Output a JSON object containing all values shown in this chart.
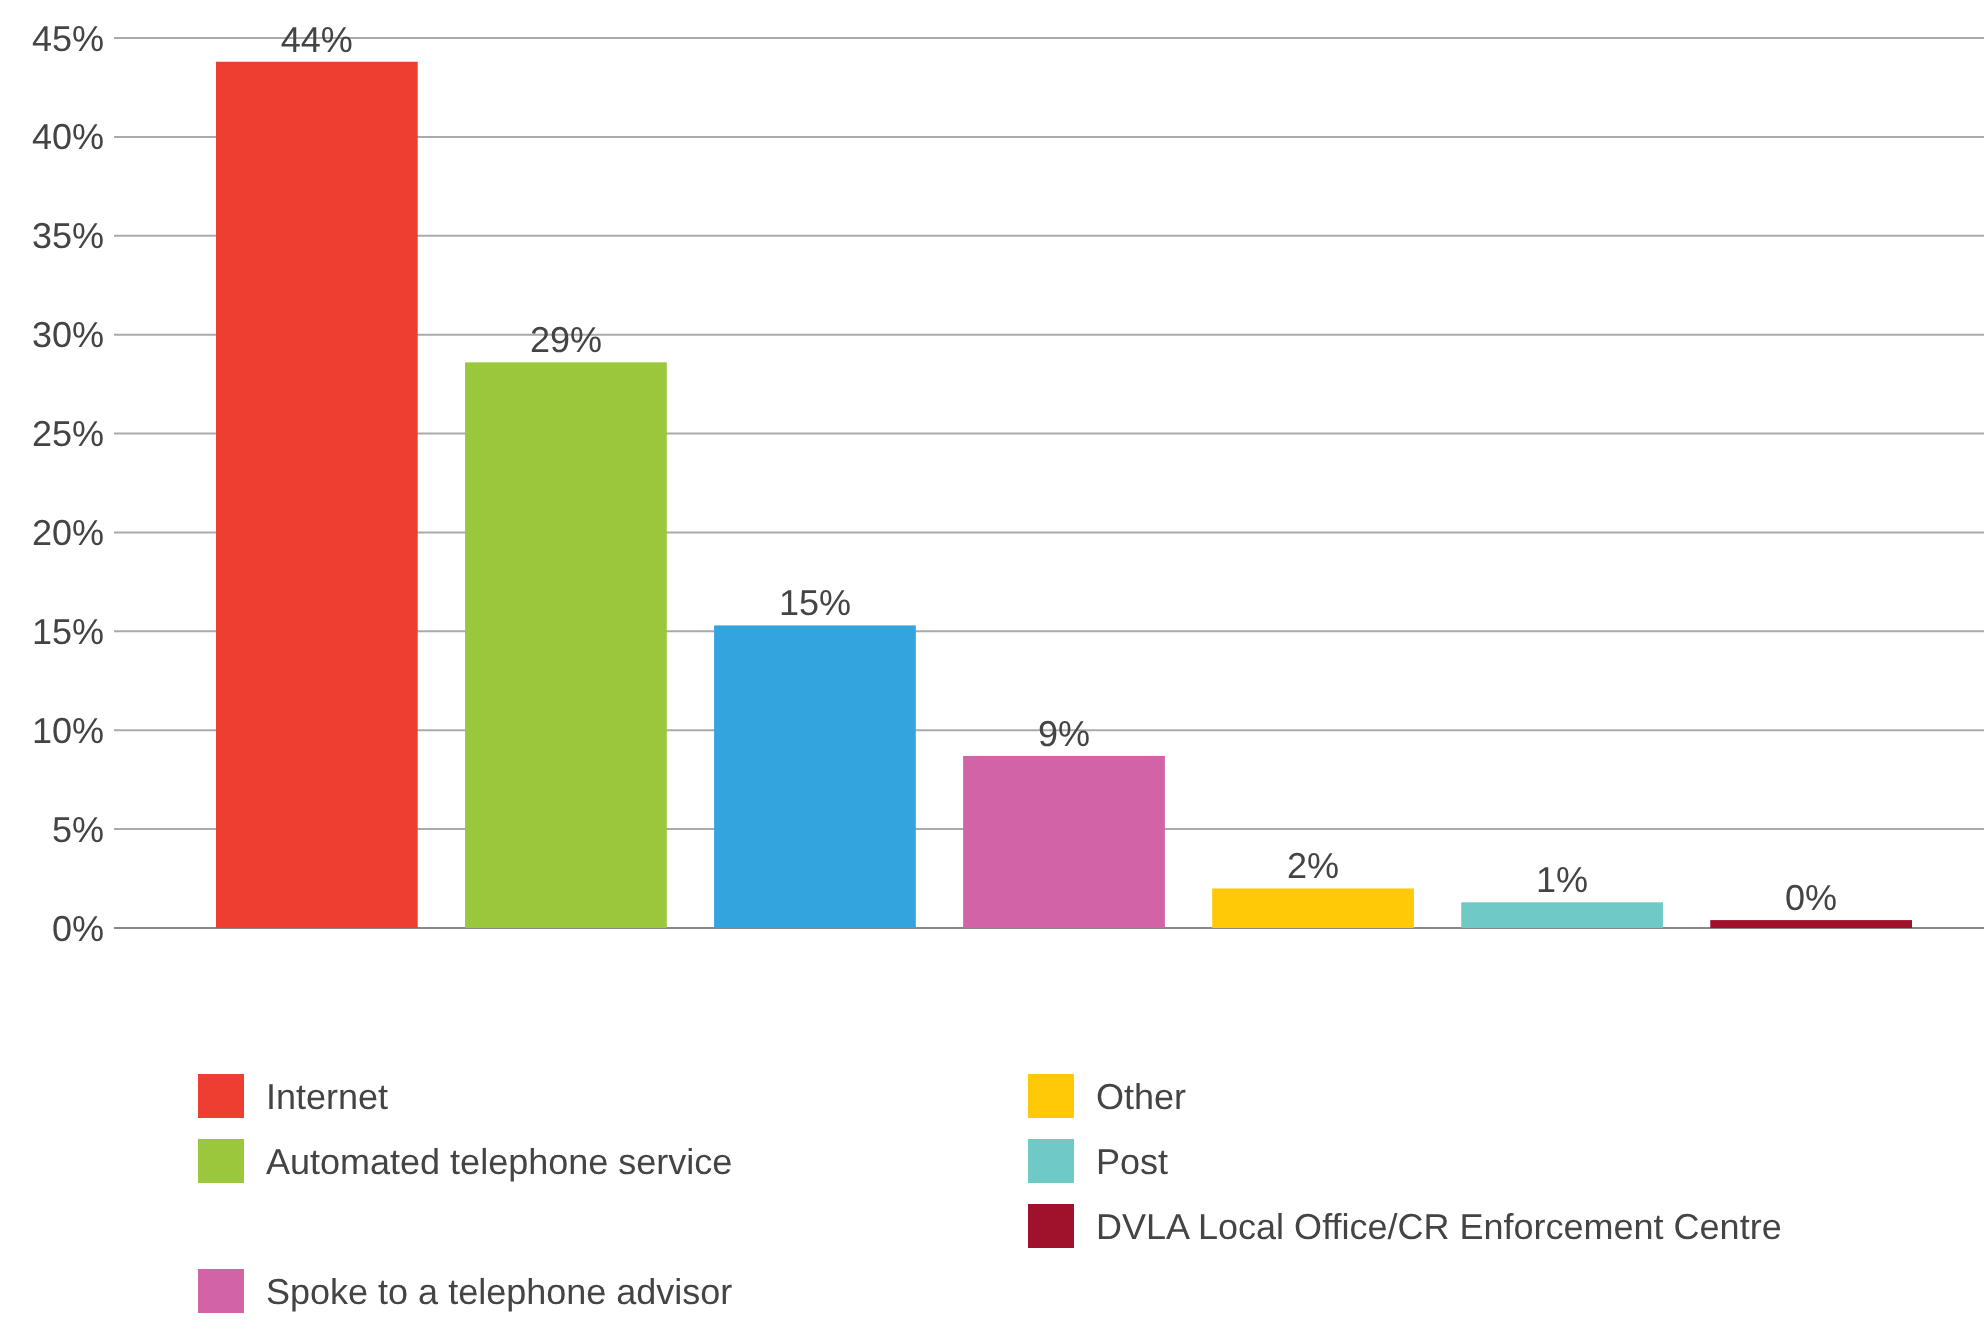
{
  "chart_data": {
    "type": "bar",
    "categories": [
      null
    ],
    "series": [
      {
        "name": "Internet",
        "color": "#ee3e32",
        "values": [
          43.8
        ],
        "value_labels": [
          "44%"
        ]
      },
      {
        "name": "Automated telephone service",
        "color": "#9bc73c",
        "values": [
          28.6
        ],
        "value_labels": [
          "29%"
        ]
      },
      {
        "color": "#34a4de",
        "values": [
          15.3
        ],
        "value_labels": [
          "15%"
        ]
      },
      {
        "name": "Spoke to a telephone advisor",
        "color": "#d163a6",
        "values": [
          8.7
        ],
        "value_labels": [
          "9%"
        ]
      },
      {
        "name": "Other",
        "color": "#ffc907",
        "values": [
          2.0
        ],
        "value_labels": [
          "2%"
        ]
      },
      {
        "name": "Post",
        "color": "#6fcac6",
        "values": [
          1.3
        ],
        "value_labels": [
          "1%"
        ]
      },
      {
        "name": "DVLA Local Office/CR Enforcement Centre",
        "color": "#a0112b",
        "values": [
          0.4
        ],
        "value_labels": [
          "0%"
        ]
      }
    ],
    "ylim": [
      0,
      45
    ],
    "yticks": [
      {
        "value": 0,
        "label": "0%"
      },
      {
        "value": 5,
        "label": "5%"
      },
      {
        "value": 10,
        "label": "10%"
      },
      {
        "value": 15,
        "label": "15%"
      },
      {
        "value": 20,
        "label": "20%"
      },
      {
        "value": 25,
        "label": "25%"
      },
      {
        "value": 30,
        "label": "30%"
      },
      {
        "value": 35,
        "label": "35%"
      },
      {
        "value": 40,
        "label": "40%"
      },
      {
        "value": 45,
        "label": "45%"
      }
    ],
    "grid": "y",
    "legend": "bottom"
  }
}
